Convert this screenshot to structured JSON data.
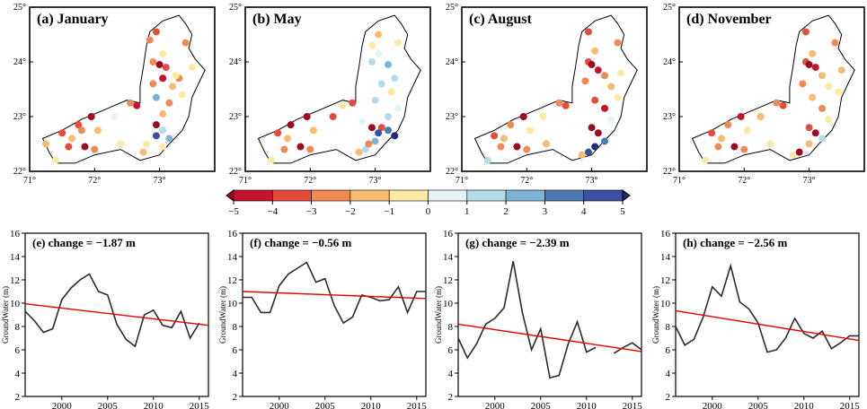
{
  "maps": [
    {
      "label": "(a) January",
      "pts": [
        [
          73.05,
          23.7,
          -4.5
        ],
        [
          73.3,
          23.7,
          -2.5
        ],
        [
          73.05,
          24.15,
          -1
        ],
        [
          72.9,
          24.0,
          -3
        ],
        [
          73.0,
          23.95,
          -5
        ],
        [
          73.1,
          23.9,
          -4
        ],
        [
          73.25,
          23.75,
          -1
        ],
        [
          73.2,
          23.55,
          -2
        ],
        [
          72.9,
          23.6,
          -3
        ],
        [
          73.35,
          23.4,
          -1
        ],
        [
          73.15,
          23.25,
          -2.5
        ],
        [
          72.95,
          23.35,
          2
        ],
        [
          73.05,
          23.05,
          -1.5
        ],
        [
          72.95,
          22.85,
          -5
        ],
        [
          73.05,
          22.75,
          1
        ],
        [
          73.15,
          22.6,
          2.5
        ],
        [
          72.95,
          22.65,
          4
        ],
        [
          73.05,
          22.45,
          -1
        ],
        [
          72.8,
          22.5,
          -0.5
        ],
        [
          72.75,
          22.35,
          -1.5
        ],
        [
          72.65,
          23.2,
          -4.5
        ],
        [
          72.55,
          23.25,
          -3
        ],
        [
          72.3,
          23.0,
          0.5
        ],
        [
          71.95,
          23.0,
          -5
        ],
        [
          71.75,
          22.85,
          -4
        ],
        [
          71.5,
          22.7,
          -4
        ],
        [
          71.65,
          22.6,
          -2
        ],
        [
          71.85,
          22.45,
          -5
        ],
        [
          72.0,
          22.4,
          -3
        ],
        [
          71.6,
          22.45,
          -4
        ],
        [
          71.8,
          22.75,
          -3
        ],
        [
          71.4,
          22.2,
          -1
        ],
        [
          71.25,
          22.5,
          -1.5
        ],
        [
          72.05,
          22.75,
          -1.5
        ],
        [
          72.4,
          22.5,
          -1
        ],
        [
          72.95,
          24.55,
          -4
        ],
        [
          73.4,
          24.35,
          -3
        ],
        [
          72.85,
          24.4,
          -2.5
        ],
        [
          73.5,
          23.9,
          -1
        ]
      ]
    },
    {
      "label": "(b) May",
      "pts": [
        [
          73.05,
          24.5,
          -2
        ],
        [
          73.35,
          24.35,
          -1
        ],
        [
          73.05,
          24.15,
          0.5
        ],
        [
          72.95,
          24.0,
          1
        ],
        [
          73.2,
          23.95,
          2
        ],
        [
          73.3,
          23.7,
          1
        ],
        [
          73.1,
          23.6,
          1.5
        ],
        [
          73.25,
          23.45,
          -0.5
        ],
        [
          73.0,
          23.3,
          1
        ],
        [
          73.35,
          23.15,
          0.5
        ],
        [
          73.2,
          23.0,
          1.5
        ],
        [
          73.1,
          22.8,
          -4
        ],
        [
          73.2,
          22.75,
          3
        ],
        [
          73.3,
          22.65,
          5
        ],
        [
          73.05,
          22.7,
          4
        ],
        [
          72.95,
          22.8,
          -5
        ],
        [
          73.0,
          22.55,
          2.5
        ],
        [
          72.85,
          22.4,
          1
        ],
        [
          72.75,
          22.35,
          -2
        ],
        [
          72.9,
          22.5,
          -3
        ],
        [
          72.65,
          23.25,
          -4
        ],
        [
          72.5,
          23.2,
          -1
        ],
        [
          72.35,
          23.0,
          -4
        ],
        [
          71.95,
          23.0,
          -5
        ],
        [
          71.7,
          22.85,
          -5
        ],
        [
          71.5,
          22.7,
          -4
        ],
        [
          71.65,
          22.6,
          -2
        ],
        [
          71.85,
          22.45,
          -5
        ],
        [
          72.0,
          22.4,
          -3
        ],
        [
          71.6,
          22.4,
          -3
        ],
        [
          72.05,
          22.75,
          -1.5
        ],
        [
          71.4,
          22.2,
          -1
        ],
        [
          72.8,
          22.9,
          0.5
        ],
        [
          72.95,
          24.3,
          -0.5
        ]
      ]
    },
    {
      "label": "(c) August",
      "pts": [
        [
          72.95,
          24.55,
          -4
        ],
        [
          73.4,
          24.35,
          -2.5
        ],
        [
          73.05,
          24.2,
          -1.5
        ],
        [
          72.95,
          24.0,
          -4
        ],
        [
          73.0,
          23.95,
          -5
        ],
        [
          73.1,
          23.85,
          -4.5
        ],
        [
          73.2,
          23.75,
          -3
        ],
        [
          73.3,
          23.55,
          -2
        ],
        [
          72.9,
          23.65,
          -3
        ],
        [
          73.4,
          23.35,
          -1
        ],
        [
          73.05,
          23.3,
          -4
        ],
        [
          73.2,
          23.15,
          -4.5
        ],
        [
          73.3,
          22.95,
          0.5
        ],
        [
          73.0,
          22.8,
          -5
        ],
        [
          73.1,
          22.7,
          -5
        ],
        [
          73.2,
          22.55,
          3
        ],
        [
          73.05,
          22.45,
          5
        ],
        [
          72.95,
          22.35,
          4
        ],
        [
          72.85,
          22.3,
          -1.5
        ],
        [
          72.6,
          23.2,
          -4
        ],
        [
          72.5,
          23.25,
          -3
        ],
        [
          72.25,
          23.0,
          -1
        ],
        [
          71.95,
          23.0,
          -5
        ],
        [
          71.75,
          22.85,
          -3
        ],
        [
          71.5,
          22.65,
          -4
        ],
        [
          71.65,
          22.6,
          -2
        ],
        [
          71.85,
          22.45,
          -5
        ],
        [
          72.0,
          22.4,
          -3
        ],
        [
          71.6,
          22.45,
          -3
        ],
        [
          72.05,
          22.75,
          -1
        ],
        [
          71.4,
          22.2,
          1
        ],
        [
          72.3,
          22.5,
          -1.5
        ],
        [
          73.45,
          23.8,
          -1
        ]
      ]
    },
    {
      "label": "(d) November",
      "pts": [
        [
          72.95,
          24.55,
          -4
        ],
        [
          73.4,
          24.35,
          -3
        ],
        [
          73.05,
          24.15,
          -1.5
        ],
        [
          72.95,
          24.0,
          -4
        ],
        [
          73.0,
          23.95,
          -5
        ],
        [
          73.1,
          23.9,
          -4.5
        ],
        [
          73.2,
          23.75,
          -2
        ],
        [
          73.3,
          23.55,
          -1
        ],
        [
          72.9,
          23.6,
          -3
        ],
        [
          73.45,
          23.45,
          -1
        ],
        [
          73.05,
          23.35,
          -2
        ],
        [
          73.2,
          23.15,
          -3
        ],
        [
          73.3,
          22.95,
          -1
        ],
        [
          73.0,
          22.8,
          -4
        ],
        [
          73.1,
          22.7,
          -5
        ],
        [
          73.2,
          22.6,
          1.5
        ],
        [
          73.0,
          22.5,
          -2
        ],
        [
          72.85,
          22.35,
          -5
        ],
        [
          72.75,
          22.3,
          -1
        ],
        [
          72.6,
          23.2,
          -4
        ],
        [
          72.5,
          23.25,
          -3
        ],
        [
          72.25,
          23.0,
          -1.5
        ],
        [
          71.95,
          23.0,
          -4.5
        ],
        [
          71.75,
          22.85,
          -3
        ],
        [
          71.5,
          22.7,
          -4
        ],
        [
          71.65,
          22.6,
          -1.5
        ],
        [
          71.85,
          22.45,
          -5
        ],
        [
          72.0,
          22.4,
          -3
        ],
        [
          71.6,
          22.45,
          -3
        ],
        [
          72.05,
          22.75,
          -1
        ],
        [
          71.4,
          22.2,
          -1
        ],
        [
          72.4,
          22.5,
          -1
        ],
        [
          73.5,
          23.85,
          -2
        ]
      ]
    }
  ],
  "map_axes": {
    "lon_ticks": [
      "71°",
      "72°",
      "73°"
    ],
    "lat_ticks": [
      "22°",
      "23°",
      "24°",
      "25°"
    ],
    "lon_range": [
      71,
      73.85
    ],
    "lat_range": [
      22,
      25
    ]
  },
  "colorbar": {
    "ticks": [
      "−5",
      "−4",
      "−3",
      "−2",
      "−1",
      "0",
      "1",
      "2",
      "3",
      "4",
      "5"
    ],
    "colors": [
      "#9c0924",
      "#c5152e",
      "#e44d3c",
      "#f08a55",
      "#f8bb72",
      "#fde9a2",
      "#e6f3f6",
      "#b5dbe9",
      "#7fb3d6",
      "#4a79b4",
      "#3a50a0",
      "#252a7a"
    ]
  },
  "chart_data": [
    {
      "type": "line",
      "title": "(e) change = −1.87 m",
      "ylabel": "GroundWater (m)",
      "xlim": [
        1996,
        2016
      ],
      "ylim": [
        2,
        16
      ],
      "x_ticks": [
        "2000",
        "2005",
        "2010",
        "2015"
      ],
      "y_ticks": [
        "2",
        "4",
        "6",
        "8",
        "10",
        "12",
        "14",
        "16"
      ],
      "series": [
        {
          "x": [
            1996,
            1997,
            1998,
            1999,
            2000,
            2001,
            2002,
            2003,
            2004,
            2005,
            2006,
            2007,
            2008,
            2009,
            2010,
            2011,
            2012,
            2013,
            2014,
            2015
          ],
          "y": [
            9.3,
            8.5,
            7.5,
            7.8,
            10.3,
            11.3,
            12.0,
            12.5,
            11.0,
            10.7,
            8.2,
            6.9,
            6.3,
            9.0,
            9.4,
            8.1,
            7.9,
            9.3,
            7.0,
            8.3
          ]
        }
      ],
      "trend": [
        [
          1996,
          9.95
        ],
        [
          2016,
          8.1
        ]
      ]
    },
    {
      "type": "line",
      "title": "(f) change = −0.56 m",
      "ylabel": "GroundWater (m)",
      "xlim": [
        1996,
        2016
      ],
      "ylim": [
        2,
        16
      ],
      "x_ticks": [
        "2000",
        "2005",
        "2010",
        "2015"
      ],
      "y_ticks": [
        "2",
        "4",
        "6",
        "8",
        "10",
        "12",
        "14",
        "16"
      ],
      "series": [
        {
          "x": [
            1996,
            1997,
            1998,
            1999,
            2000,
            2001,
            2002,
            2003,
            2004,
            2005,
            2006,
            2007,
            2008,
            2009,
            2010,
            2011,
            2012,
            2013,
            2014,
            2015,
            2016
          ],
          "y": [
            10.5,
            10.5,
            9.2,
            9.2,
            11.5,
            12.5,
            13.0,
            13.5,
            11.8,
            12.1,
            9.8,
            8.3,
            8.8,
            10.7,
            10.5,
            10.2,
            10.3,
            11.4,
            9.2,
            11.0,
            11.0
          ]
        }
      ],
      "trend": [
        [
          1996,
          11.0
        ],
        [
          2016,
          10.4
        ]
      ]
    },
    {
      "type": "line",
      "title": "(g) change = −2.39 m",
      "ylabel": "GroundWater (m)",
      "xlim": [
        1996,
        2016
      ],
      "ylim": [
        2,
        16
      ],
      "x_ticks": [
        "2000",
        "2005",
        "2010",
        "2015"
      ],
      "y_ticks": [
        "2",
        "4",
        "6",
        "8",
        "10",
        "12",
        "14",
        "16"
      ],
      "series": [
        {
          "x": [
            1996,
            1997,
            1998,
            1999,
            2000,
            2001,
            2002,
            2003,
            2004,
            2005,
            2006,
            2007,
            2008,
            2009,
            2010,
            2011
          ],
          "y": [
            7.0,
            5.3,
            6.5,
            8.2,
            8.7,
            9.6,
            13.6,
            9.2,
            6.0,
            7.8,
            3.6,
            3.8,
            6.5,
            8.4,
            5.8,
            6.2
          ]
        },
        {
          "x": [
            2013,
            2014,
            2015,
            2016
          ],
          "y": [
            5.7,
            6.2,
            6.6,
            6.0
          ]
        }
      ],
      "trend": [
        [
          1996,
          8.2
        ],
        [
          2016,
          5.85
        ]
      ]
    },
    {
      "type": "line",
      "title": "(h) change = −2.56 m",
      "ylabel": "GroundWater (m)",
      "xlim": [
        1996,
        2016
      ],
      "ylim": [
        2,
        16
      ],
      "x_ticks": [
        "2000",
        "2005",
        "2010",
        "2015"
      ],
      "y_ticks": [
        "2",
        "4",
        "6",
        "8",
        "10",
        "12",
        "14",
        "16"
      ],
      "series": [
        {
          "x": [
            1996,
            1997,
            1998,
            1999,
            2000,
            2001,
            2002,
            2003,
            2004,
            2005,
            2006,
            2007,
            2008,
            2009,
            2010,
            2011,
            2012,
            2013,
            2014,
            2015,
            2016
          ],
          "y": [
            8.0,
            6.4,
            6.9,
            8.8,
            11.4,
            10.6,
            13.2,
            10.1,
            9.5,
            8.3,
            5.8,
            6.0,
            7.0,
            8.7,
            7.4,
            7.0,
            7.6,
            6.1,
            6.6,
            7.2,
            7.2
          ]
        }
      ],
      "trend": [
        [
          1996,
          9.35
        ],
        [
          2016,
          6.8
        ]
      ]
    }
  ],
  "colors": {
    "line": "#2b2b2b",
    "trend": "#e60000"
  }
}
